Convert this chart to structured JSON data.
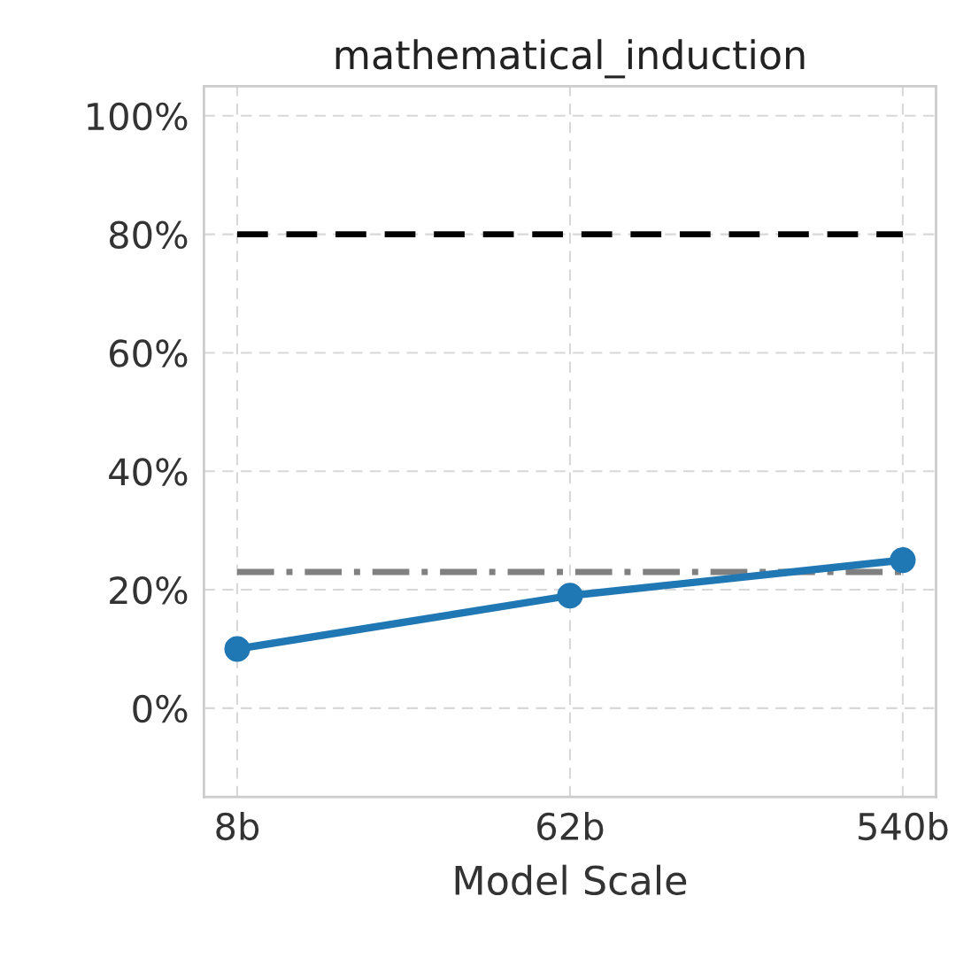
{
  "chart_data": {
    "type": "line",
    "title": "mathematical_induction",
    "xlabel": "Model Scale",
    "categories": [
      "8b",
      "62b",
      "540b"
    ],
    "series": [
      {
        "color": "#1f77b4",
        "values": [
          10,
          19,
          25
        ]
      }
    ],
    "ylim": [
      -15,
      105
    ],
    "yticks": [
      {
        "value": 0,
        "label": "0%"
      },
      {
        "value": 20,
        "label": "20%"
      },
      {
        "value": 40,
        "label": "40%"
      },
      {
        "value": 60,
        "label": "60%"
      },
      {
        "value": 80,
        "label": "80%"
      },
      {
        "value": 100,
        "label": "100%"
      }
    ],
    "ref_lines": [
      {
        "axis": "y",
        "value": 80,
        "color": "#000000",
        "line_style": "dashed"
      },
      {
        "axis": "y",
        "value": 23,
        "color": "#808080",
        "line_style": "dashdot"
      }
    ],
    "grid": true,
    "marker": "circle",
    "line_style": "solid"
  }
}
